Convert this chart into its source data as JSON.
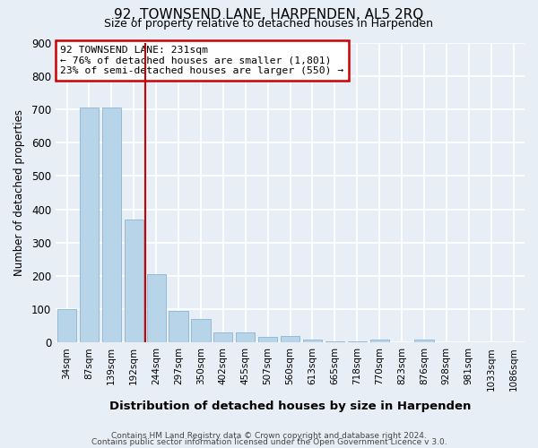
{
  "title": "92, TOWNSEND LANE, HARPENDEN, AL5 2RQ",
  "subtitle": "Size of property relative to detached houses in Harpenden",
  "xlabel": "Distribution of detached houses by size in Harpenden",
  "ylabel": "Number of detached properties",
  "categories": [
    "34sqm",
    "87sqm",
    "139sqm",
    "192sqm",
    "244sqm",
    "297sqm",
    "350sqm",
    "402sqm",
    "455sqm",
    "507sqm",
    "560sqm",
    "613sqm",
    "665sqm",
    "718sqm",
    "770sqm",
    "823sqm",
    "876sqm",
    "928sqm",
    "981sqm",
    "1033sqm",
    "1086sqm"
  ],
  "values": [
    100,
    705,
    705,
    370,
    205,
    95,
    70,
    30,
    30,
    18,
    20,
    8,
    5,
    5,
    8,
    0,
    8,
    0,
    0,
    0,
    0
  ],
  "bar_color": "#b8d4e8",
  "bar_edge_color": "#8ab5d0",
  "background_color": "#e8eef5",
  "grid_color": "#ffffff",
  "vline_x": 4,
  "vline_color": "#cc0000",
  "annotation_title": "92 TOWNSEND LANE: 231sqm",
  "annotation_line1": "← 76% of detached houses are smaller (1,801)",
  "annotation_line2": "23% of semi-detached houses are larger (550) →",
  "annotation_box_color": "#ffffff",
  "annotation_box_edge": "#cc0000",
  "footer1": "Contains HM Land Registry data © Crown copyright and database right 2024.",
  "footer2": "Contains public sector information licensed under the Open Government Licence v 3.0.",
  "ylim": [
    0,
    900
  ],
  "yticks": [
    0,
    100,
    200,
    300,
    400,
    500,
    600,
    700,
    800,
    900
  ],
  "title_fontsize": 11,
  "subtitle_fontsize": 9,
  "title_fontweight": "normal"
}
